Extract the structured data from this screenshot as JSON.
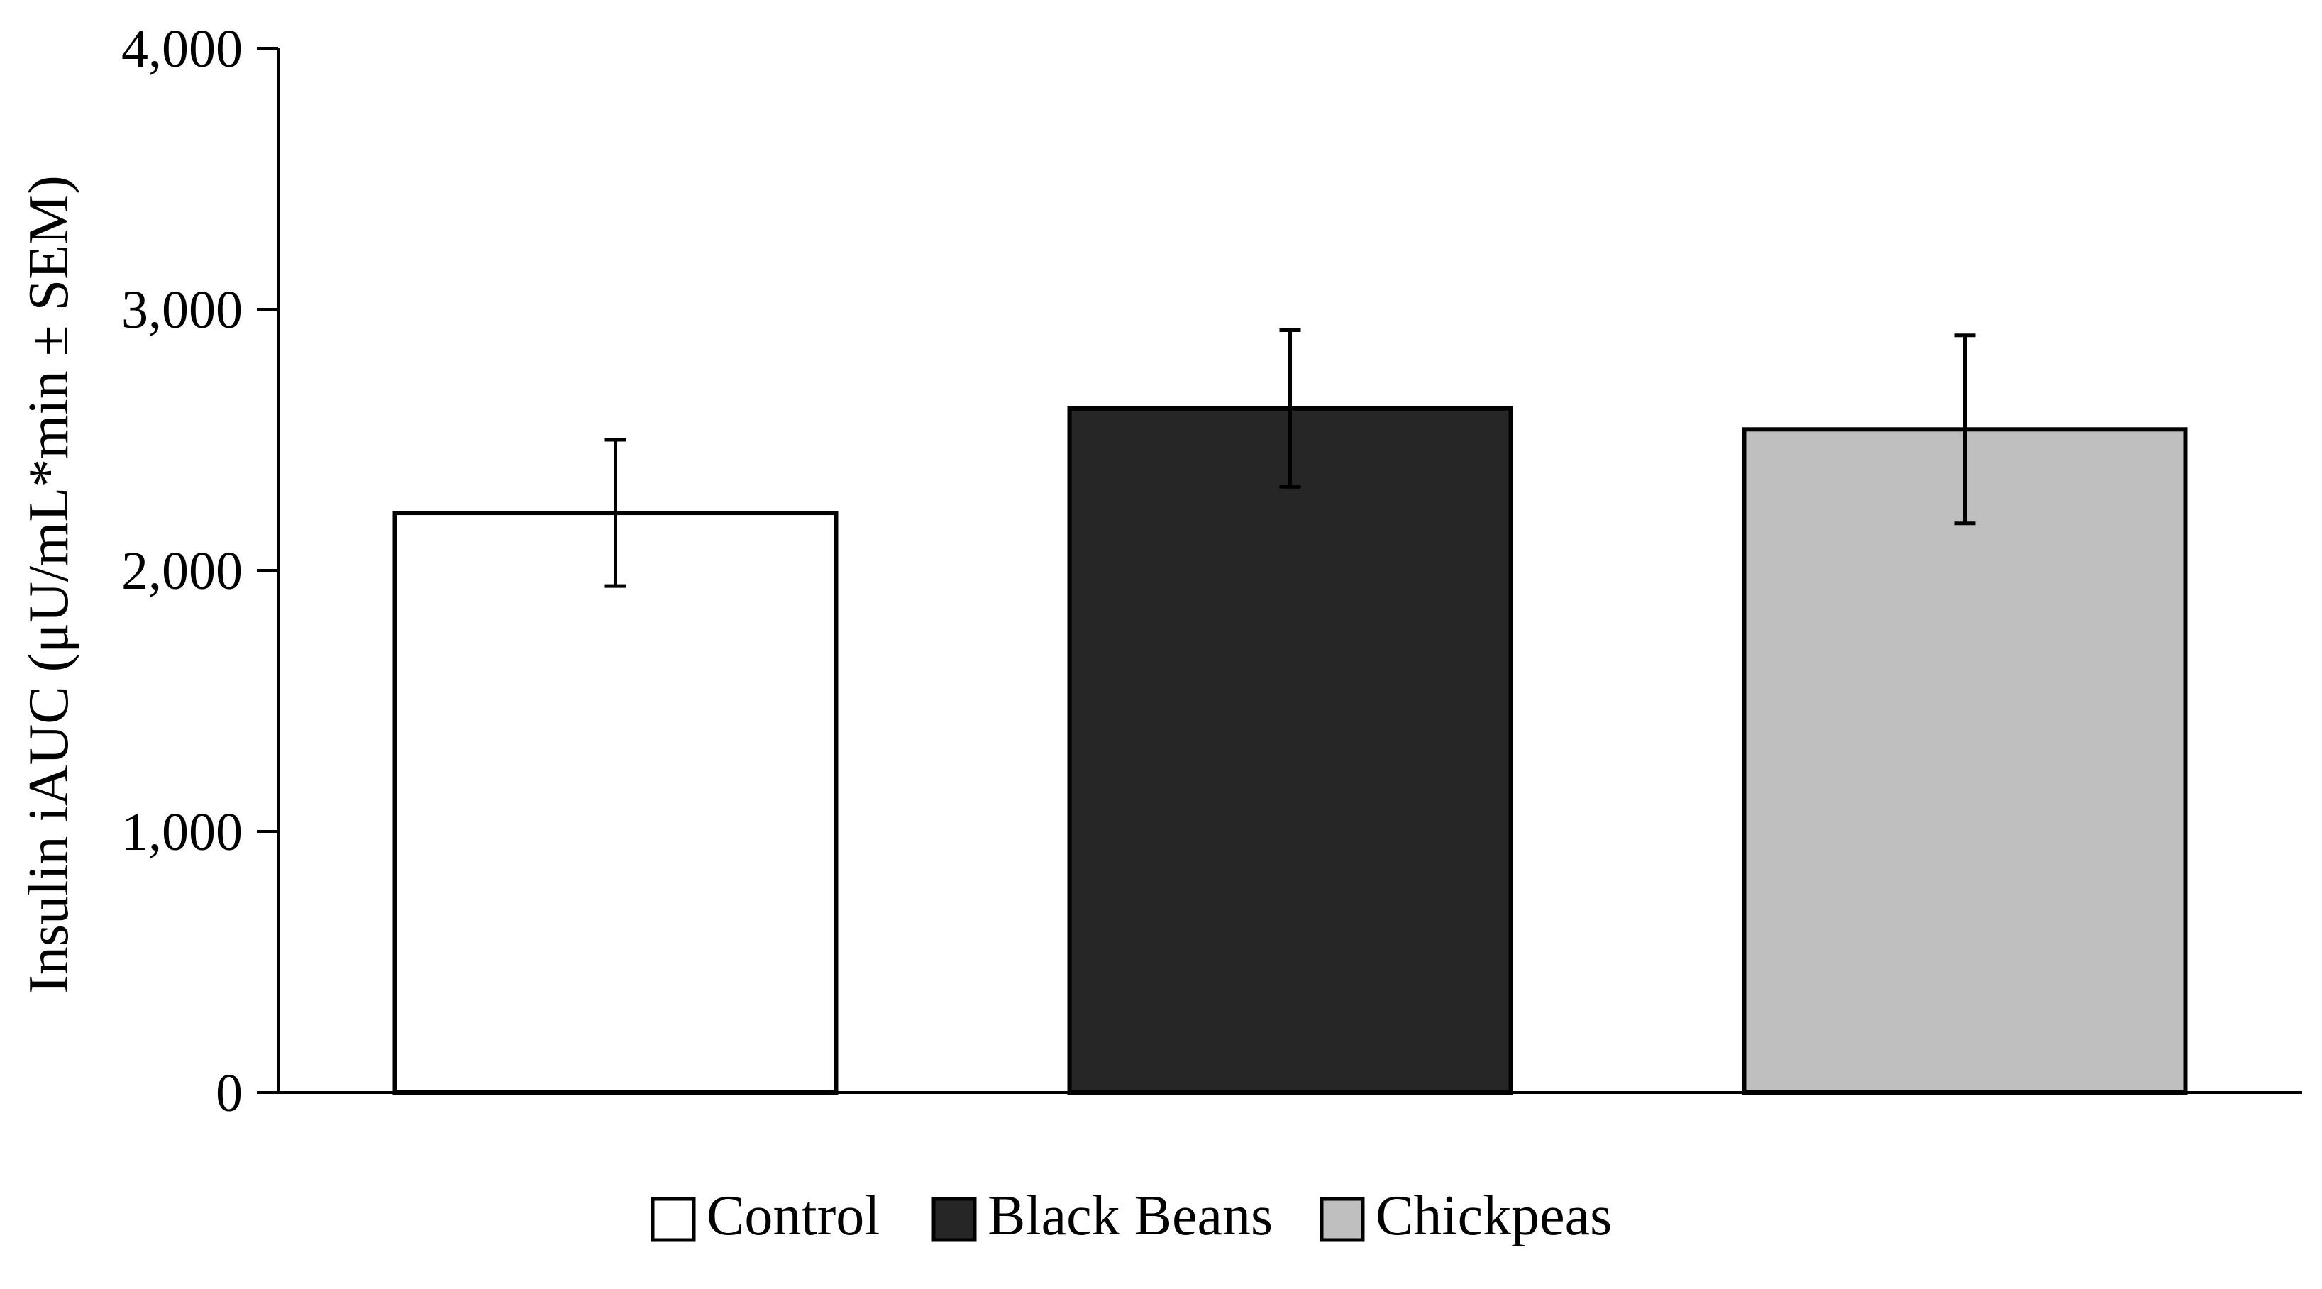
{
  "chart_data": {
    "type": "bar",
    "title": "",
    "xlabel": "",
    "ylabel": "Insulin iAUC (μU/mL*min ± SEM)",
    "ylim": [
      0,
      4000
    ],
    "yticks": [
      0,
      1000,
      2000,
      3000,
      4000
    ],
    "ytick_labels": [
      "0",
      "1,000",
      "2,000",
      "3,000",
      "4,000"
    ],
    "grid": false,
    "legend_position": "bottom-center",
    "categories": [
      "Control",
      "Black Beans",
      "Chickpeas"
    ],
    "values": [
      2220,
      2620,
      2540
    ],
    "errors": [
      280,
      300,
      360
    ],
    "colors": [
      "#ffffff",
      "#262626",
      "#bfbfbf"
    ]
  }
}
